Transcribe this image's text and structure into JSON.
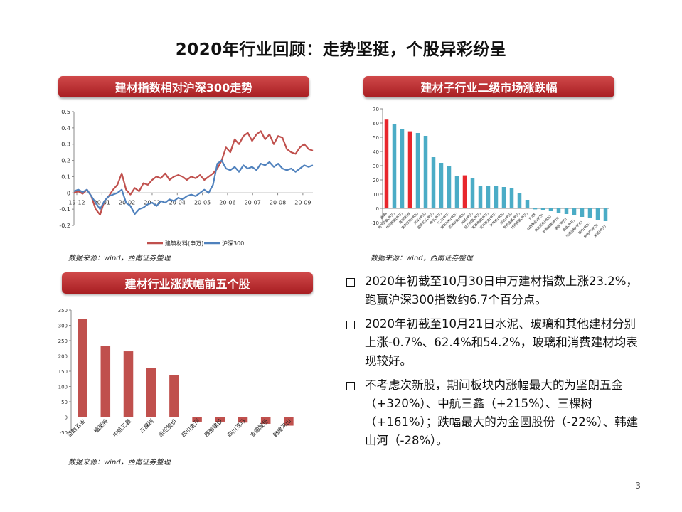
{
  "page_title": "2020年行业回顾：走势坚挺，个股异彩纷呈",
  "panels": {
    "line": {
      "banner": "建材指数相对沪深300走势",
      "source": "数据来源：wind，西南证券整理"
    },
    "subsector": {
      "banner": "建材子行业二级市场涨跌幅",
      "source": "数据来源：wind，西南证券整理"
    },
    "stocks": {
      "banner": "建材行业涨跌幅前五个股",
      "source": "数据来源：wind，西南证券整理"
    }
  },
  "bullets": [
    "2020年初截至10月30日申万建材指数上涨23.2%，跑赢沪深300指数约6.7个百分点。",
    "2020年初截至10月21日水泥、玻璃和其他建材分别上涨-0.7%、62.4%和54.2%，玻璃和消费建材均表现较好。",
    "不考虑次新股，期间板块内涨幅最大的为坚朗五金（+320%）、中航三鑫（+215%）、三棵树（+161%）；跌幅最大的为金圆股份（-22%）、韩建山河（-28%）。"
  ],
  "page_number": "3",
  "colors": {
    "red": "#c0504d",
    "blue": "#4f81bd",
    "teal": "#4bacc6",
    "highlight_red": "#e8262c"
  },
  "chart_data": [
    {
      "type": "line",
      "x_ticks": [
        "19-12",
        "20-01",
        "20-02",
        "20-03",
        "20-04",
        "20-05",
        "20-06",
        "20-07",
        "20-08",
        "20-09"
      ],
      "ylim": [
        -0.2,
        0.5
      ],
      "y_ticks": [
        "0.5",
        "0.4",
        "0.3",
        "0.2",
        "0.1",
        "0",
        "-0.1",
        "-0.2"
      ],
      "legend_position": "bottom",
      "series": [
        {
          "name": "建筑材料(申万)",
          "color": "#c0504d",
          "values": [
            0,
            0.01,
            -0.005,
            0.02,
            -0.02,
            -0.1,
            -0.135,
            -0.05,
            -0.02,
            0.02,
            0.05,
            0.12,
            0.02,
            -0.01,
            0.03,
            0.01,
            0.06,
            0.05,
            0.08,
            0.1,
            0.09,
            0.12,
            0.08,
            0.1,
            0.11,
            0.1,
            0.08,
            0.1,
            0.09,
            0.11,
            0.08,
            0.1,
            0.12,
            0.15,
            0.2,
            0.28,
            0.25,
            0.33,
            0.3,
            0.35,
            0.37,
            0.32,
            0.36,
            0.38,
            0.33,
            0.36,
            0.3,
            0.35,
            0.34,
            0.27,
            0.25,
            0.24,
            0.28,
            0.3,
            0.27,
            0.26
          ]
        },
        {
          "name": "沪深300",
          "color": "#4f81bd",
          "values": [
            0.01,
            0.02,
            0.005,
            0.02,
            -0.02,
            -0.06,
            -0.1,
            -0.05,
            -0.02,
            -0.01,
            0.0,
            0.02,
            -0.06,
            -0.08,
            -0.13,
            -0.1,
            -0.09,
            -0.07,
            -0.06,
            -0.08,
            -0.05,
            -0.06,
            -0.04,
            -0.05,
            -0.03,
            -0.04,
            -0.02,
            -0.01,
            -0.02,
            0.0,
            0.02,
            0.0,
            0.05,
            0.18,
            0.2,
            0.15,
            0.14,
            0.16,
            0.13,
            0.17,
            0.15,
            0.16,
            0.14,
            0.18,
            0.17,
            0.19,
            0.16,
            0.18,
            0.15,
            0.14,
            0.15,
            0.13,
            0.15,
            0.17,
            0.16,
            0.17
          ]
        }
      ]
    },
    {
      "type": "bar",
      "ylim": [
        -10,
        70
      ],
      "y_ticks": [
        "70",
        "60",
        "50",
        "40",
        "30",
        "20",
        "10",
        "0",
        "-10"
      ],
      "categories": [
        "玻璃Ⅱ",
        "电气设备(申万)",
        "休闲服装(申万)",
        "其他建材Ⅱ",
        "医药生物(申万)",
        "汽车(申万)",
        "国防军工(申万)",
        "电子(申万)",
        "化工(申万)",
        "建筑材料(申万)",
        "机械设备(申万)",
        "传媒(申万)",
        "轻工制造(申万)",
        "家用电器(申万)",
        "农林牧渔(申万)",
        "计算机(申万)",
        "综合(申万)",
        "有色金属(申万)",
        "纺织服装(申万)",
        "水泥Ⅱ",
        "公用事业(申万)",
        "商业贸易(申万)",
        "非银金融(申万)",
        "通信(申万)",
        "钢铁(申万)",
        "交通运输(申万)",
        "银行(申万)",
        "房地产(申万)",
        "采掘(申万)"
      ],
      "values": [
        62.4,
        59,
        56,
        54.2,
        53,
        51,
        36,
        32,
        30,
        23,
        23.2,
        21,
        16,
        16,
        16,
        15,
        14,
        11,
        6,
        -0.7,
        -1,
        -2,
        -3,
        -4,
        -5,
        -6,
        -7,
        -8,
        -9
      ],
      "highlight": [
        0,
        3,
        10
      ]
    },
    {
      "type": "bar",
      "ylim": [
        -50,
        350
      ],
      "y_ticks": [
        "350",
        "300",
        "250",
        "200",
        "150",
        "100",
        "50",
        "0",
        "-50"
      ],
      "categories": [
        "坚朗五金",
        "福莱特",
        "中航三鑫",
        "三棵树",
        "凯伦股份",
        "四川金顶",
        "西部建设",
        "四川双马",
        "金圆股份",
        "韩建河山"
      ],
      "values": [
        320,
        232,
        215,
        161,
        138,
        -15,
        -15,
        -18,
        -22,
        -28
      ]
    }
  ]
}
